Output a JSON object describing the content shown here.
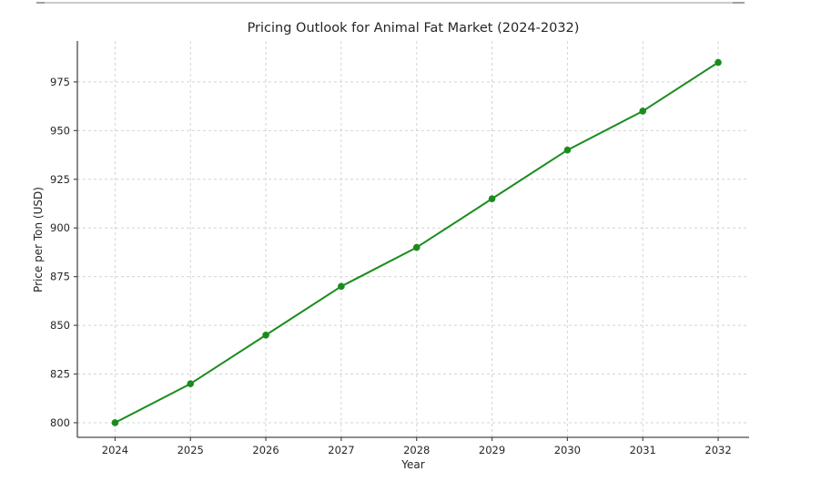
{
  "page": {
    "background": "#ffffff",
    "top_divider_color": "#cbcbcb",
    "top_divider_cap_color": "#a0a0a0"
  },
  "chart_data": {
    "type": "line",
    "title": "Pricing Outlook for Animal Fat Market (2024-2032)",
    "xlabel": "Year",
    "ylabel": "Price per Ton (USD)",
    "x": [
      2024,
      2025,
      2026,
      2027,
      2028,
      2029,
      2030,
      2031,
      2032
    ],
    "series": [
      {
        "name": "Price per Ton (USD)",
        "values": [
          800,
          820,
          845,
          870,
          890,
          915,
          940,
          960,
          985
        ]
      }
    ],
    "xticks": [
      2024,
      2025,
      2026,
      2027,
      2028,
      2029,
      2030,
      2031,
      2032
    ],
    "yticks": [
      800,
      825,
      850,
      875,
      900,
      925,
      950,
      975
    ],
    "xlim": [
      2023.5,
      2032.41
    ],
    "ylim": [
      792.5,
      996
    ],
    "grid": true,
    "grid_color": "#d4d4d4",
    "legend": "none",
    "line_color": "#1a8c1e",
    "marker": "circle",
    "spine_color": "#4a4a4a",
    "tick_color": "#4a4a4a"
  }
}
